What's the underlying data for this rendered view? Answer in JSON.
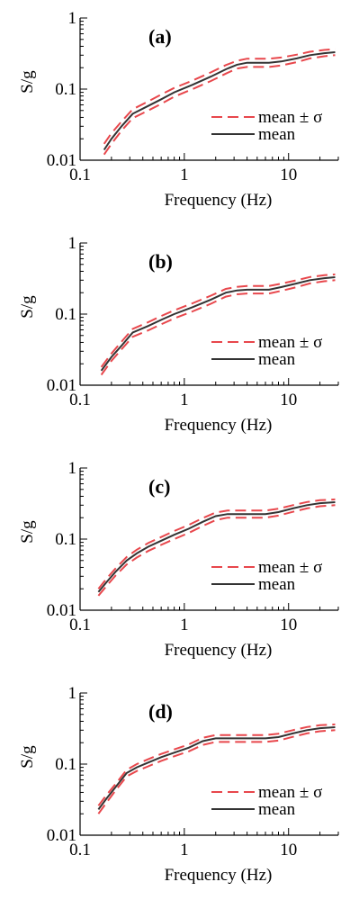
{
  "chart_data": [
    {
      "type": "line",
      "panel_label": "(a)",
      "xlabel": "Frequency (Hz)",
      "ylabel": "S/g",
      "xscale": "log",
      "yscale": "log",
      "xlim": [
        0.1,
        30
      ],
      "ylim": [
        0.01,
        1
      ],
      "x_ticks": [
        "0.1",
        "1",
        "10"
      ],
      "y_ticks": [
        "0.01",
        "0.1",
        "1"
      ],
      "legend": {
        "position": "lower-right",
        "entries": [
          "mean ± σ",
          "mean"
        ]
      },
      "series": [
        {
          "name": "mean",
          "color": "#333333",
          "x": [
            0.17,
            0.2,
            0.25,
            0.32,
            0.45,
            0.6,
            0.8,
            1.2,
            1.8,
            2.5,
            3.2,
            4.0,
            5.0,
            6.5,
            8.5,
            12,
            16,
            22,
            28
          ],
          "y": [
            0.014,
            0.02,
            0.03,
            0.045,
            0.058,
            0.072,
            0.09,
            0.115,
            0.15,
            0.19,
            0.22,
            0.235,
            0.235,
            0.235,
            0.245,
            0.27,
            0.3,
            0.32,
            0.33
          ]
        },
        {
          "name": "mean ± σ",
          "color": "#e8474c",
          "x": [
            0.17,
            0.2,
            0.25,
            0.32,
            0.45,
            0.6,
            0.8,
            1.2,
            1.8,
            2.5,
            3.2,
            4.0,
            5.0,
            6.5,
            8.5,
            12,
            16,
            22,
            28
          ],
          "y_low": [
            0.012,
            0.017,
            0.026,
            0.039,
            0.05,
            0.062,
            0.078,
            0.1,
            0.13,
            0.165,
            0.195,
            0.205,
            0.205,
            0.205,
            0.215,
            0.24,
            0.27,
            0.29,
            0.3
          ],
          "y_high": [
            0.017,
            0.024,
            0.035,
            0.052,
            0.067,
            0.084,
            0.104,
            0.132,
            0.172,
            0.218,
            0.25,
            0.268,
            0.268,
            0.268,
            0.278,
            0.305,
            0.335,
            0.355,
            0.365
          ]
        }
      ]
    },
    {
      "type": "line",
      "panel_label": "(b)",
      "xlabel": "Frequency (Hz)",
      "ylabel": "S/g",
      "xscale": "log",
      "yscale": "log",
      "xlim": [
        0.1,
        30
      ],
      "ylim": [
        0.01,
        1
      ],
      "x_ticks": [
        "0.1",
        "1",
        "10"
      ],
      "y_ticks": [
        "0.01",
        "0.1",
        "1"
      ],
      "legend": {
        "position": "lower-right",
        "entries": [
          "mean ± σ",
          "mean"
        ]
      },
      "series": [
        {
          "name": "mean",
          "color": "#333333",
          "x": [
            0.16,
            0.2,
            0.25,
            0.32,
            0.45,
            0.6,
            0.8,
            1.2,
            1.8,
            2.5,
            3.2,
            4.0,
            5.0,
            6.5,
            8.5,
            12,
            16,
            22,
            28
          ],
          "y": [
            0.016,
            0.025,
            0.036,
            0.055,
            0.068,
            0.083,
            0.1,
            0.125,
            0.16,
            0.2,
            0.215,
            0.22,
            0.22,
            0.22,
            0.24,
            0.27,
            0.3,
            0.32,
            0.33
          ]
        },
        {
          "name": "mean ± σ",
          "color": "#e8474c",
          "x": [
            0.16,
            0.2,
            0.25,
            0.32,
            0.45,
            0.6,
            0.8,
            1.2,
            1.8,
            2.5,
            3.2,
            4.0,
            5.0,
            6.5,
            8.5,
            12,
            16,
            22,
            28
          ],
          "y_low": [
            0.014,
            0.022,
            0.032,
            0.048,
            0.059,
            0.072,
            0.087,
            0.109,
            0.14,
            0.176,
            0.19,
            0.195,
            0.195,
            0.195,
            0.212,
            0.24,
            0.27,
            0.29,
            0.3
          ],
          "y_high": [
            0.018,
            0.028,
            0.041,
            0.062,
            0.077,
            0.094,
            0.113,
            0.142,
            0.182,
            0.226,
            0.242,
            0.248,
            0.248,
            0.248,
            0.268,
            0.3,
            0.332,
            0.352,
            0.362
          ]
        }
      ]
    },
    {
      "type": "line",
      "panel_label": "(c)",
      "xlabel": "Frequency (Hz)",
      "ylabel": "S/g",
      "xscale": "log",
      "yscale": "log",
      "xlim": [
        0.1,
        30
      ],
      "ylim": [
        0.01,
        1
      ],
      "x_ticks": [
        "0.1",
        "1",
        "10"
      ],
      "y_ticks": [
        "0.01",
        "0.1",
        "1"
      ],
      "legend": {
        "position": "lower-right",
        "entries": [
          "mean ± σ",
          "mean"
        ]
      },
      "series": [
        {
          "name": "mean",
          "color": "#333333",
          "x": [
            0.15,
            0.18,
            0.22,
            0.28,
            0.35,
            0.45,
            0.6,
            0.8,
            1.1,
            1.5,
            2.0,
            2.6,
            3.5,
            4.5,
            6.0,
            8.0,
            11,
            15,
            20,
            28
          ],
          "y": [
            0.018,
            0.025,
            0.035,
            0.05,
            0.063,
            0.078,
            0.095,
            0.115,
            0.14,
            0.175,
            0.21,
            0.225,
            0.225,
            0.225,
            0.225,
            0.24,
            0.27,
            0.3,
            0.32,
            0.33
          ]
        },
        {
          "name": "mean ± σ",
          "color": "#e8474c",
          "x": [
            0.15,
            0.18,
            0.22,
            0.28,
            0.35,
            0.45,
            0.6,
            0.8,
            1.1,
            1.5,
            2.0,
            2.6,
            3.5,
            4.5,
            6.0,
            8.0,
            11,
            15,
            20,
            28
          ],
          "y_low": [
            0.016,
            0.022,
            0.031,
            0.044,
            0.055,
            0.068,
            0.083,
            0.1,
            0.122,
            0.153,
            0.185,
            0.2,
            0.2,
            0.2,
            0.2,
            0.214,
            0.242,
            0.27,
            0.29,
            0.3
          ],
          "y_high": [
            0.02,
            0.028,
            0.039,
            0.056,
            0.071,
            0.088,
            0.107,
            0.13,
            0.158,
            0.197,
            0.236,
            0.252,
            0.252,
            0.252,
            0.252,
            0.268,
            0.3,
            0.332,
            0.352,
            0.362
          ]
        }
      ]
    },
    {
      "type": "line",
      "panel_label": "(d)",
      "xlabel": "Frequency (Hz)",
      "ylabel": "S/g",
      "xscale": "log",
      "yscale": "log",
      "xlim": [
        0.1,
        30
      ],
      "ylim": [
        0.01,
        1
      ],
      "x_ticks": [
        "0.1",
        "1",
        "10"
      ],
      "y_ticks": [
        "0.01",
        "0.1",
        "1"
      ],
      "legend": {
        "position": "lower-right",
        "entries": [
          "mean ± σ",
          "mean"
        ]
      },
      "series": [
        {
          "name": "mean",
          "color": "#333333",
          "x": [
            0.15,
            0.18,
            0.22,
            0.28,
            0.35,
            0.45,
            0.6,
            0.8,
            1.1,
            1.5,
            2.0,
            2.6,
            3.5,
            4.5,
            6.0,
            8.0,
            11,
            15,
            20,
            28
          ],
          "y": [
            0.023,
            0.033,
            0.048,
            0.075,
            0.09,
            0.105,
            0.125,
            0.145,
            0.17,
            0.21,
            0.23,
            0.23,
            0.23,
            0.23,
            0.23,
            0.24,
            0.27,
            0.3,
            0.32,
            0.33
          ]
        },
        {
          "name": "mean ± σ",
          "color": "#e8474c",
          "x": [
            0.15,
            0.18,
            0.22,
            0.28,
            0.35,
            0.45,
            0.6,
            0.8,
            1.1,
            1.5,
            2.0,
            2.6,
            3.5,
            4.5,
            6.0,
            8.0,
            11,
            15,
            20,
            28
          ],
          "y_low": [
            0.02,
            0.029,
            0.043,
            0.067,
            0.08,
            0.093,
            0.111,
            0.129,
            0.151,
            0.186,
            0.205,
            0.205,
            0.205,
            0.205,
            0.205,
            0.214,
            0.242,
            0.27,
            0.29,
            0.3
          ],
          "y_high": [
            0.026,
            0.037,
            0.053,
            0.083,
            0.1,
            0.117,
            0.139,
            0.161,
            0.189,
            0.234,
            0.256,
            0.256,
            0.256,
            0.256,
            0.256,
            0.268,
            0.3,
            0.332,
            0.352,
            0.362
          ]
        }
      ]
    }
  ]
}
